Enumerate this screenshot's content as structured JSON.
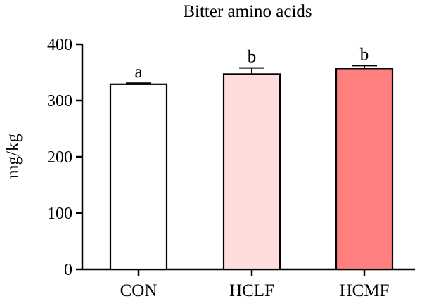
{
  "chart_data": {
    "type": "bar",
    "title": "Bitter amino acids",
    "ylabel": "mg/kg",
    "xlabel": "",
    "ylim": [
      0,
      400
    ],
    "yticks": [
      0,
      100,
      200,
      300,
      400
    ],
    "categories": [
      "CON",
      "HCLF",
      "HCMF"
    ],
    "values": [
      329,
      347,
      357
    ],
    "errors": [
      2,
      11,
      5
    ],
    "significance": [
      "a",
      "b",
      "b"
    ],
    "colors": [
      "#ffffff",
      "#ffdcdc",
      "#ff7f7f"
    ],
    "grid": false
  }
}
